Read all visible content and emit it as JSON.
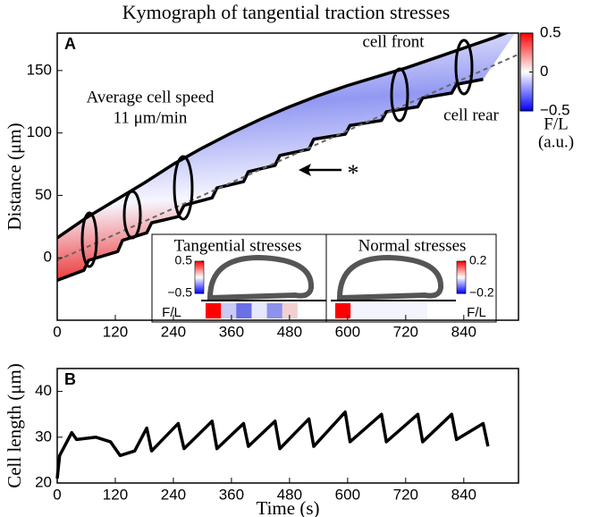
{
  "chart_data": [
    {
      "type": "kymograph",
      "title": "Kymograph of tangential traction stresses",
      "panel_label": "A",
      "ylabel": "Distance (μm)",
      "xlim": [
        0,
        953
      ],
      "xticks": [
        0,
        120,
        240,
        360,
        480,
        600,
        720,
        840
      ],
      "ylim": [
        -50,
        180
      ],
      "yticks": [
        0,
        50,
        100,
        150
      ],
      "series": [
        {
          "name": "cell front",
          "color": "#000000",
          "x": [
            0,
            60,
            120,
            180,
            240,
            300,
            360,
            420,
            480,
            540,
            600,
            660,
            720,
            780,
            840,
            900,
            953
          ],
          "values": [
            16,
            32,
            46,
            60,
            75,
            88,
            100,
            111,
            121,
            130,
            138,
            145,
            152,
            160,
            168,
            176,
            184
          ]
        },
        {
          "name": "cell rear",
          "color": "#000000",
          "x": [
            0,
            55,
            65,
            125,
            135,
            185,
            195,
            250,
            262,
            320,
            330,
            385,
            395,
            450,
            460,
            520,
            530,
            595,
            605,
            670,
            680,
            745,
            755,
            815,
            825,
            880
          ],
          "values": [
            -18,
            -10,
            -2,
            5,
            14,
            20,
            28,
            33,
            42,
            48,
            56,
            61,
            69,
            74,
            82,
            87,
            95,
            99,
            106,
            110,
            117,
            121,
            128,
            132,
            139,
            143
          ]
        },
        {
          "color": "#666666",
          "dashed": true,
          "x": [
            0,
            953
          ],
          "values": [
            -2,
            163
          ]
        }
      ],
      "speed_label": [
        "Average cell speed",
        "11 μm/min"
      ],
      "marker": "*",
      "colorbar": {
        "colors": [
          "#0000ff",
          "#ffffff",
          "#ff0000"
        ],
        "clim": [
          -0.5,
          0.5
        ],
        "ticks": [
          0.5,
          0,
          {
            "value": -0.5,
            "label": "−0.5"
          }
        ],
        "label": [
          "F/L",
          "(a.u.)"
        ]
      },
      "inset": [
        {
          "title": "Tangential stresses",
          "ticks": [
            0.5,
            {
              "value": -0.5,
              "label": "−0.5"
            }
          ],
          "label": "F/L"
        },
        {
          "title": "Normal stresses",
          "ticks": [
            0.2,
            {
              "value": -0.2,
              "label": "−0.2"
            }
          ],
          "label": "F/L"
        }
      ]
    },
    {
      "type": "line",
      "panel_label": "B",
      "ylabel": "Cell length (μm)",
      "xlabel": "Time (s)",
      "xlim": [
        0,
        953
      ],
      "xticks": [
        0,
        120,
        240,
        360,
        480,
        600,
        720,
        840
      ],
      "ylim": [
        20,
        45
      ],
      "yticks": [
        20,
        30,
        40
      ],
      "series": [
        {
          "color": "#000000",
          "x": [
            0,
            5,
            20,
            30,
            40,
            80,
            110,
            130,
            160,
            185,
            195,
            250,
            262,
            320,
            330,
            385,
            395,
            450,
            460,
            520,
            530,
            595,
            605,
            670,
            680,
            745,
            755,
            815,
            825,
            880,
            890
          ],
          "values": [
            21,
            26,
            29,
            31,
            29.5,
            30,
            29,
            26,
            27,
            32,
            27,
            33,
            27.5,
            33.5,
            27.5,
            33,
            28,
            33.5,
            27.5,
            34,
            28,
            35.5,
            29,
            35,
            29,
            35,
            29,
            35,
            29.5,
            33,
            28
          ]
        }
      ]
    }
  ]
}
